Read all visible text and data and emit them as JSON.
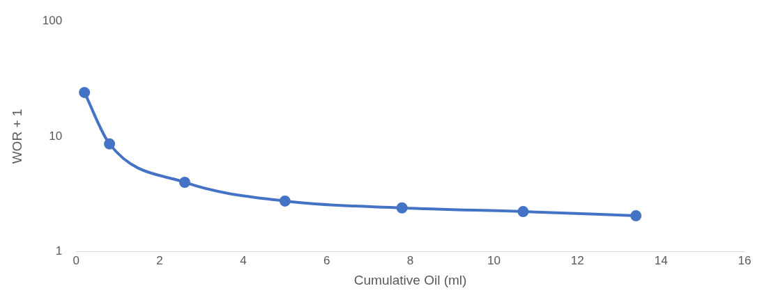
{
  "chart_data": {
    "type": "line",
    "xlabel": "Cumulative Oil (ml)",
    "ylabel": "WOR + 1",
    "x": [
      0.2,
      0.8,
      2.6,
      5,
      7.8,
      10.7,
      13.4
    ],
    "series": [
      {
        "color": "#4472c4",
        "values": [
          24,
          8.6,
          4.0,
          2.75,
          2.4,
          2.23,
          2.05
        ]
      }
    ],
    "xlim": [
      0,
      16
    ],
    "xticks": [
      0,
      2,
      4,
      6,
      8,
      10,
      12,
      14,
      16
    ],
    "ylim": [
      1,
      100
    ],
    "yticks": [
      1,
      10,
      100
    ],
    "log": "y",
    "grid": false,
    "legend": false,
    "marker": "circle",
    "line_style": "solid"
  }
}
